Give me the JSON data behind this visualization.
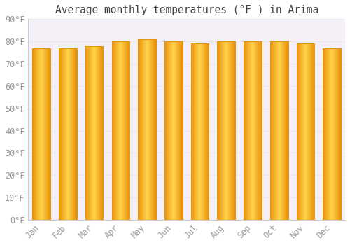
{
  "title": "Average monthly temperatures (°F ) in Arima",
  "months": [
    "Jan",
    "Feb",
    "Mar",
    "Apr",
    "May",
    "Jun",
    "Jul",
    "Aug",
    "Sep",
    "Oct",
    "Nov",
    "Dec"
  ],
  "values": [
    77,
    77,
    78,
    80,
    81,
    80,
    79,
    80,
    80,
    80,
    79,
    77
  ],
  "bar_color_center": "#FFD44C",
  "bar_color_edge": "#E8920A",
  "bar_width": 0.68,
  "ylim": [
    0,
    90
  ],
  "yticks": [
    0,
    10,
    20,
    30,
    40,
    50,
    60,
    70,
    80,
    90
  ],
  "background_color": "#FFFFFF",
  "plot_bg_color": "#F5F0F8",
  "grid_color": "#E8E8EE",
  "title_fontsize": 10.5,
  "tick_fontsize": 8.5,
  "title_font": "monospace",
  "tick_font": "monospace",
  "tick_color": "#999999",
  "spine_color": "#CCCCCC"
}
